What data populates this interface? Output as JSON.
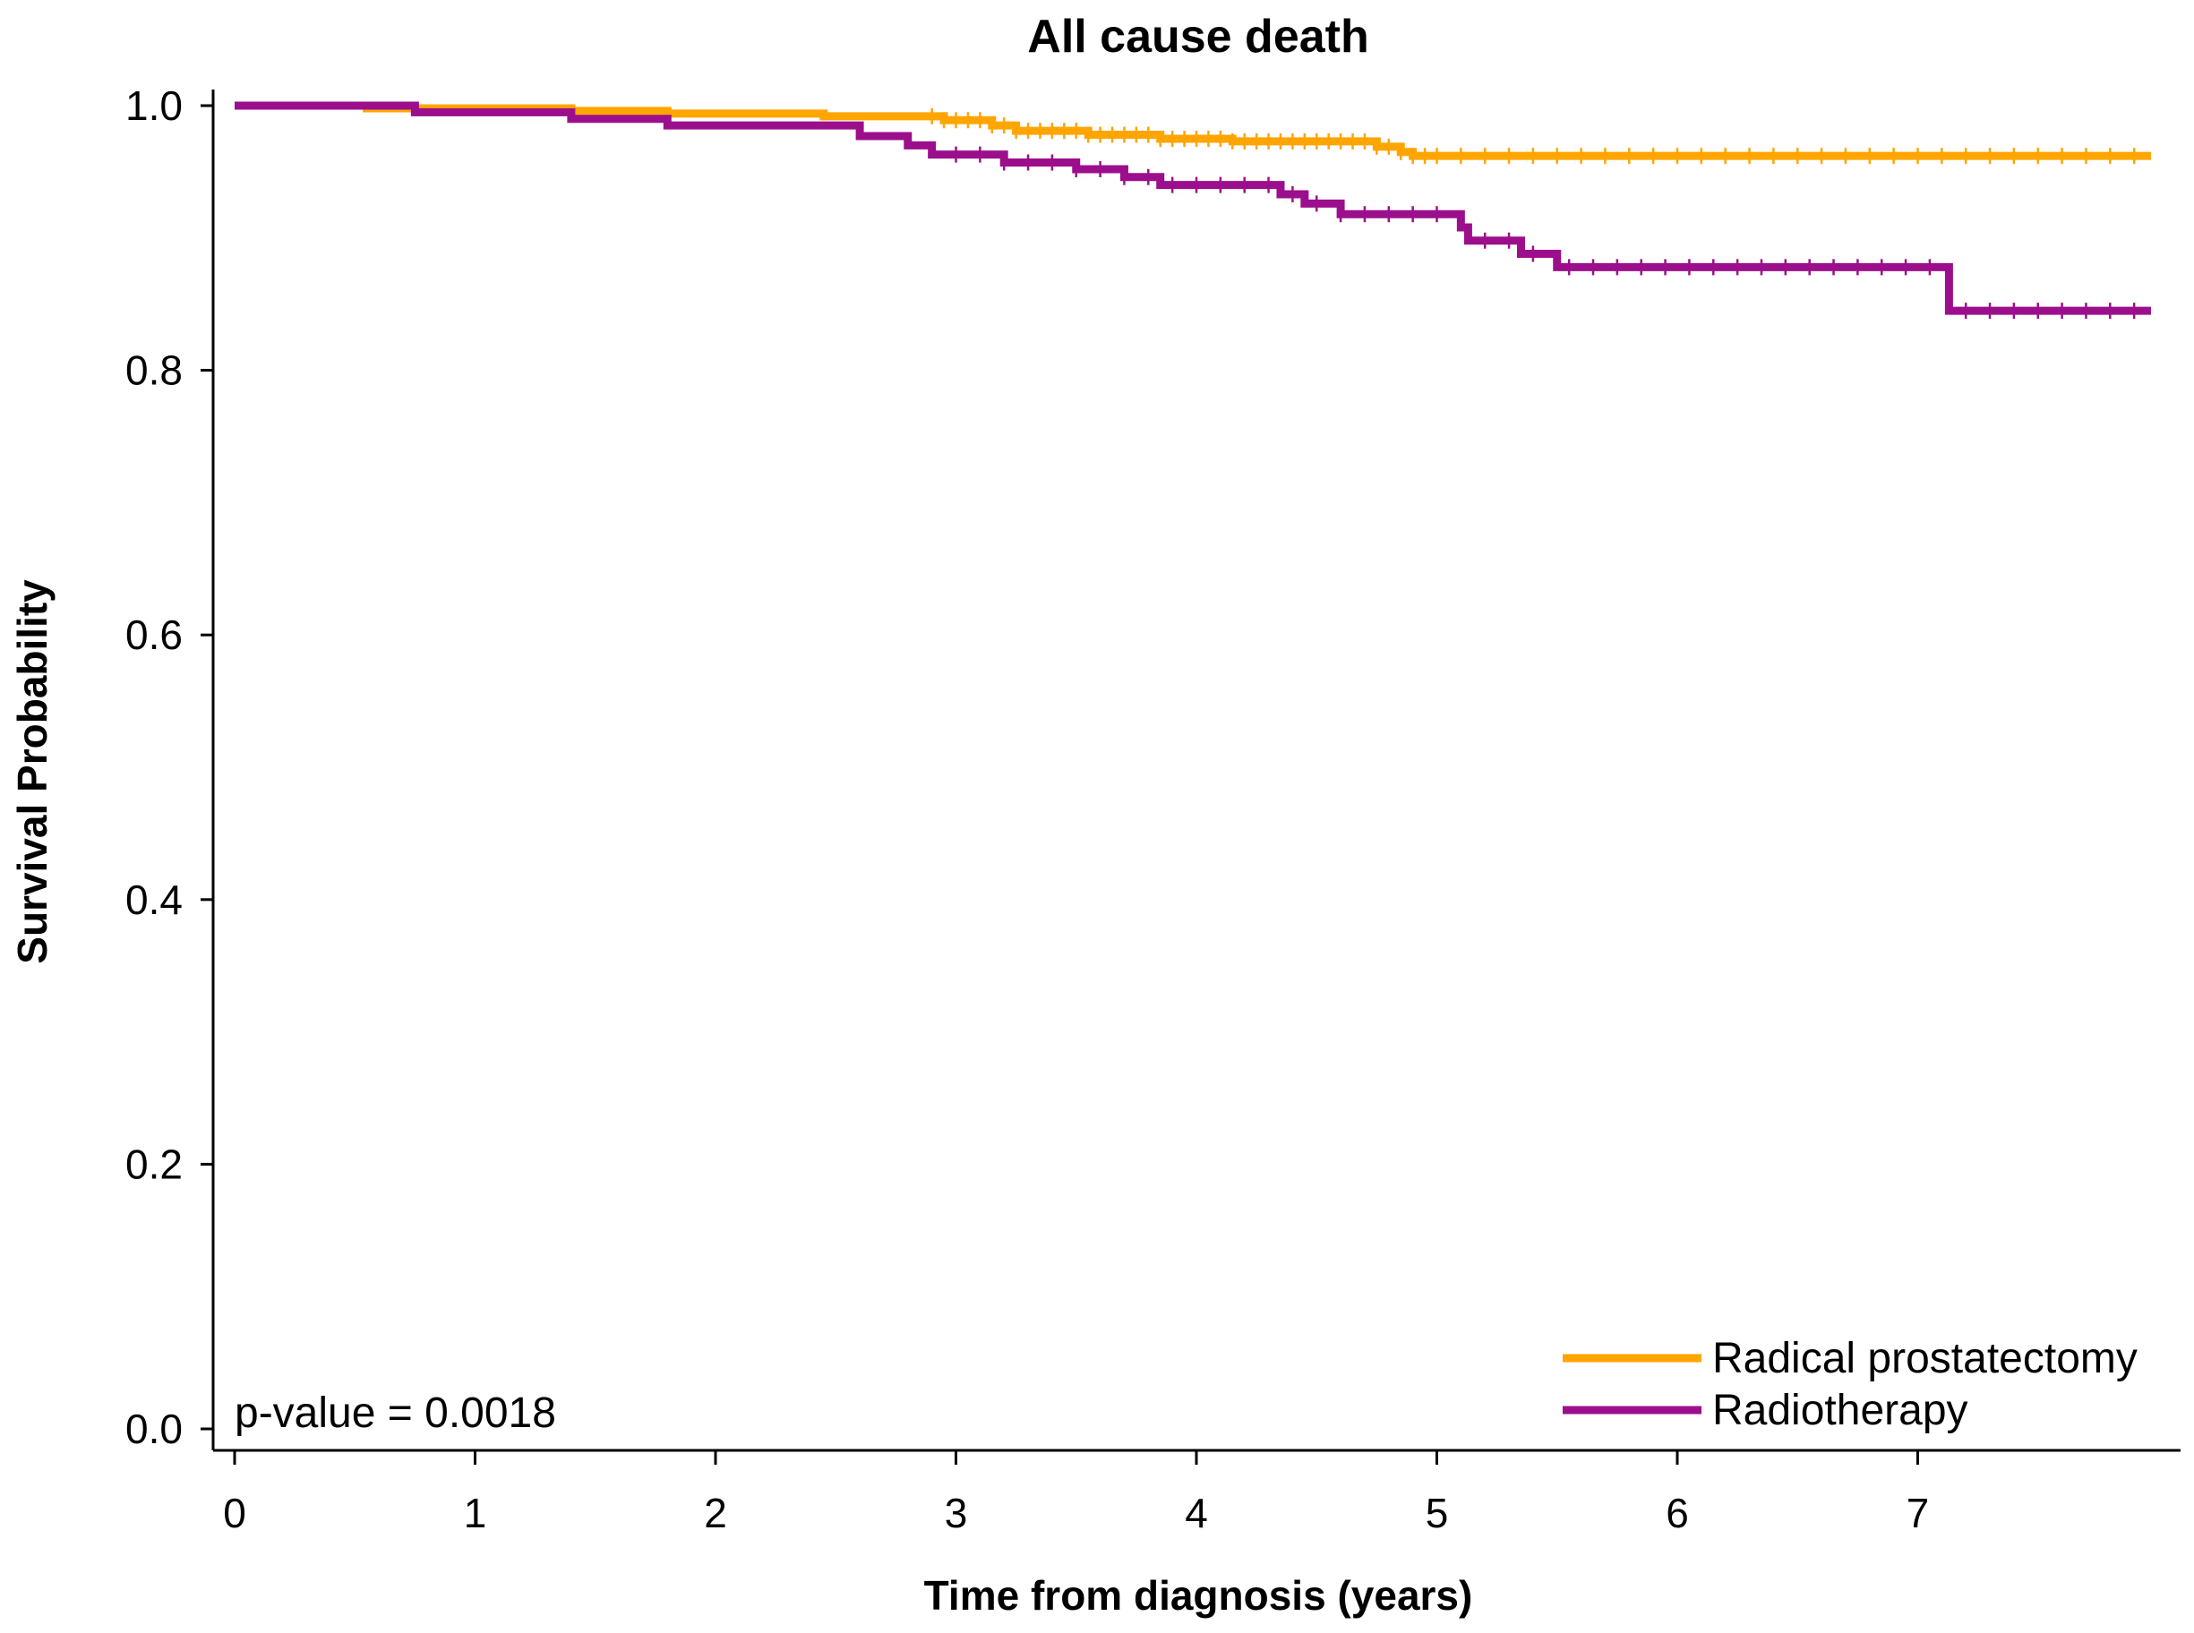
{
  "chart_data": {
    "type": "line",
    "subtype": "kaplan-meier",
    "title": "All cause death",
    "xlabel": "Time from diagnosis (years)",
    "ylabel": "Survival Probability",
    "xlim": [
      0,
      8
    ],
    "ylim": [
      0,
      1
    ],
    "x_ticks": [
      "0",
      "1",
      "2",
      "3",
      "4",
      "5",
      "6",
      "7"
    ],
    "y_ticks": [
      "0.0",
      "0.2",
      "0.4",
      "0.6",
      "0.8",
      "1.0"
    ],
    "grid": false,
    "legend_position": "bottom-right",
    "annotation": "p-value = 0.0018",
    "series": [
      {
        "name": "Radical prostatectomy",
        "color": "#FFA500",
        "steps": [
          [
            0,
            1.0
          ],
          [
            0.55,
            0.998
          ],
          [
            1.4,
            0.996
          ],
          [
            1.8,
            0.994
          ],
          [
            2.45,
            0.992
          ],
          [
            2.95,
            0.989
          ],
          [
            3.15,
            0.985
          ],
          [
            3.25,
            0.981
          ],
          [
            3.55,
            0.978
          ],
          [
            3.85,
            0.975
          ],
          [
            4.15,
            0.973
          ],
          [
            4.75,
            0.969
          ],
          [
            4.85,
            0.965
          ],
          [
            4.9,
            0.962
          ],
          [
            7.97,
            0.962
          ]
        ],
        "censor_times": [
          2.9,
          2.95,
          3.0,
          3.05,
          3.1,
          3.15,
          3.2,
          3.25,
          3.3,
          3.35,
          3.4,
          3.45,
          3.5,
          3.55,
          3.6,
          3.65,
          3.7,
          3.75,
          3.8,
          3.85,
          3.9,
          3.95,
          4.0,
          4.05,
          4.1,
          4.15,
          4.2,
          4.25,
          4.3,
          4.35,
          4.4,
          4.45,
          4.5,
          4.55,
          4.6,
          4.65,
          4.7,
          4.75,
          4.8,
          4.85,
          4.9,
          4.95,
          5.0,
          5.1,
          5.2,
          5.3,
          5.4,
          5.5,
          5.6,
          5.7,
          5.8,
          5.9,
          6.0,
          6.1,
          6.2,
          6.3,
          6.4,
          6.5,
          6.6,
          6.7,
          6.8,
          6.9,
          7.0,
          7.1,
          7.2,
          7.3,
          7.4,
          7.5,
          7.6,
          7.7,
          7.8,
          7.9
        ]
      },
      {
        "name": "Radiotherapy",
        "color": "#9C0F8C",
        "steps": [
          [
            0,
            1.0
          ],
          [
            0.75,
            0.995
          ],
          [
            1.4,
            0.99
          ],
          [
            1.8,
            0.985
          ],
          [
            2.6,
            0.977
          ],
          [
            2.8,
            0.97
          ],
          [
            2.9,
            0.963
          ],
          [
            3.2,
            0.957
          ],
          [
            3.5,
            0.952
          ],
          [
            3.7,
            0.946
          ],
          [
            3.85,
            0.94
          ],
          [
            4.35,
            0.933
          ],
          [
            4.45,
            0.926
          ],
          [
            4.6,
            0.918
          ],
          [
            5.1,
            0.908
          ],
          [
            5.13,
            0.898
          ],
          [
            5.35,
            0.888
          ],
          [
            5.5,
            0.878
          ],
          [
            7.13,
            0.845
          ],
          [
            7.97,
            0.845
          ]
        ],
        "censor_times": [
          3.0,
          3.1,
          3.2,
          3.3,
          3.4,
          3.5,
          3.6,
          3.7,
          3.8,
          3.9,
          4.0,
          4.1,
          4.2,
          4.3,
          4.4,
          4.5,
          4.6,
          4.7,
          4.8,
          4.9,
          5.0,
          5.2,
          5.3,
          5.4,
          5.55,
          5.65,
          5.75,
          5.85,
          5.95,
          6.05,
          6.15,
          6.25,
          6.35,
          6.45,
          6.55,
          6.65,
          6.75,
          6.85,
          6.95,
          7.05,
          7.2,
          7.3,
          7.4,
          7.5,
          7.6,
          7.7,
          7.8,
          7.9
        ]
      }
    ]
  }
}
